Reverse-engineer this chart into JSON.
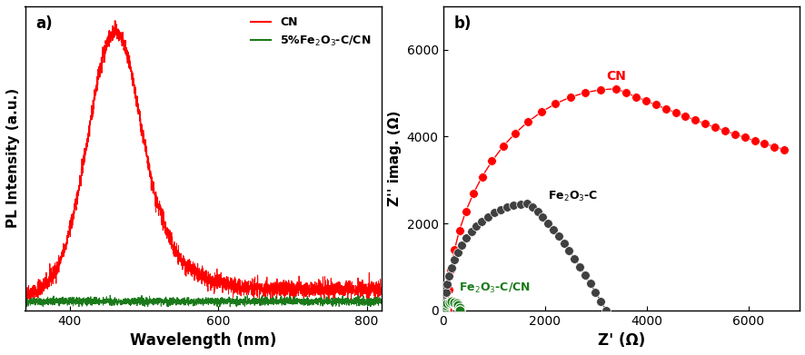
{
  "pl_cn_color": "#ff0000",
  "pl_green_color": "#1a7a1a",
  "pl_xlabel": "Wavelength (nm)",
  "pl_ylabel": "PL Intensity (a.u.)",
  "pl_xlim": [
    340,
    820
  ],
  "pl_legend_cn": "CN",
  "pl_legend_fe": "5%Fe$_2$O$_3$-C/CN",
  "eis_red_color": "#ff0000",
  "eis_black_color": "#404040",
  "eis_green_color": "#1a7a1a",
  "eis_xlabel": "Z' (Ω)",
  "eis_ylabel": "Z'' imag. (Ω)",
  "eis_label_cn": "CN",
  "eis_label_fe2o3c": "Fe$_2$O$_3$-C",
  "eis_label_fe2o3ccn": "Fe$_2$O$_3$-C/CN",
  "eis_xlim": [
    0,
    7000
  ],
  "eis_ylim": [
    0,
    7000
  ],
  "panel_a_label": "a)",
  "panel_b_label": "b)"
}
